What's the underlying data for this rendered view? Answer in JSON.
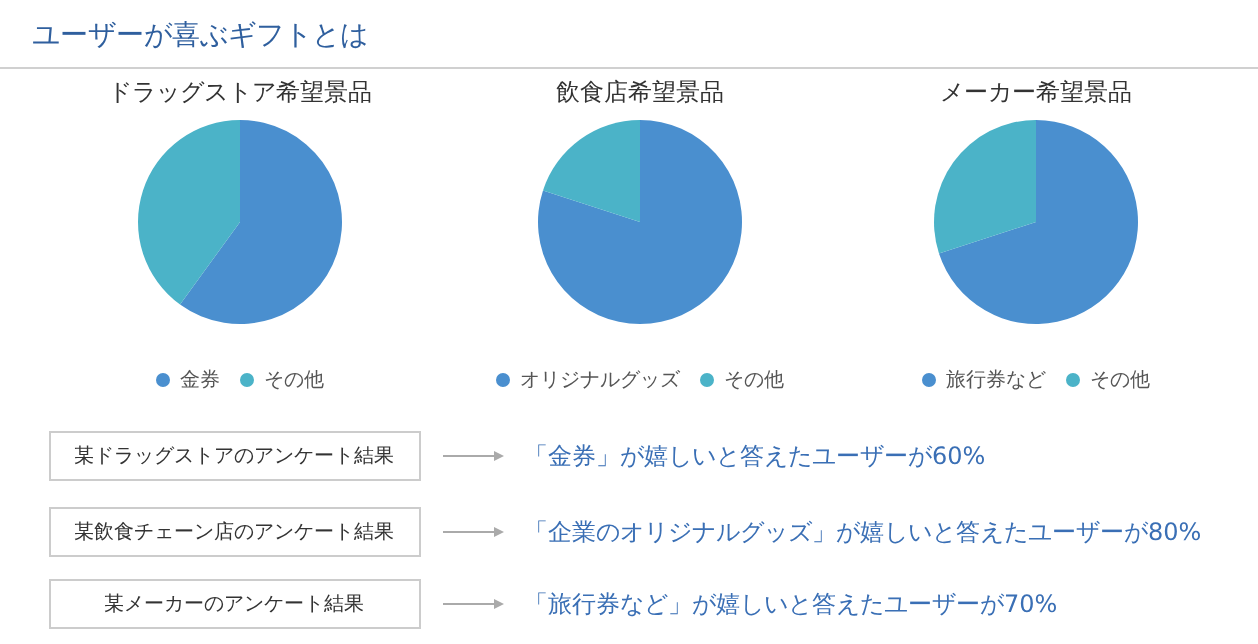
{
  "chart_data": [
    {
      "type": "pie",
      "title": "ドラッグストア希望景品",
      "categories": [
        "金券",
        "その他"
      ],
      "values": [
        60,
        40
      ],
      "colors": [
        "#4a8fcf",
        "#4bb3c8"
      ],
      "legend": "bottom"
    },
    {
      "type": "pie",
      "title": "飲食店希望景品",
      "categories": [
        "オリジナルグッズ",
        "その他"
      ],
      "values": [
        80,
        20
      ],
      "colors": [
        "#4a8fcf",
        "#4bb3c8"
      ],
      "legend": "bottom"
    },
    {
      "type": "pie",
      "title": "メーカー希望景品",
      "categories": [
        "旅行券など",
        "その他"
      ],
      "values": [
        70,
        30
      ],
      "colors": [
        "#4a8fcf",
        "#4bb3c8"
      ],
      "legend": "bottom"
    },
    {
      "type": "other",
      "title": "ユーザーが喜ぶギフトとは",
      "annotations": [
        "某ドラッグストアのアンケート結果",
        "「金券」が嬉しいと答えたユーザーが60%",
        "某飲食チェーン店のアンケート結果",
        "「企業のオリジナルグッズ」が嬉しいと答えたユーザーが80%",
        "某メーカーのアンケート結果",
        "「旅行券など」が嬉しいと答えたユーザーが70%"
      ]
    }
  ]
}
